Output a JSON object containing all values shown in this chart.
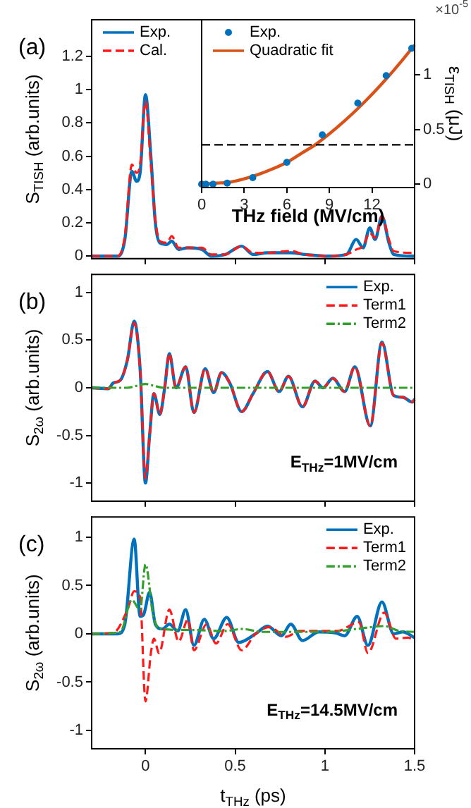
{
  "chart_data": [
    {
      "type": "line",
      "annotations": [
        "(a)"
      ],
      "ylabel": "S$_{TISH}$ (arb.units)",
      "xlim": [
        -0.3,
        1.5
      ],
      "xticks": [
        0,
        0.5,
        1,
        1.5
      ],
      "ylim": [
        -0.015,
        1.42
      ],
      "yticks": [
        0,
        0.2,
        0.4,
        0.6,
        0.8,
        1,
        1.2
      ],
      "tick_labels": "y",
      "legend": "top left",
      "series": [
        {
          "name": "Exp.",
          "color": "#0072bd",
          "line_style": "solid",
          "x": [
            -0.3,
            -0.154,
            -0.115,
            -0.076,
            -0.05,
            -0.03,
            0,
            0.03,
            0.055,
            0.08,
            0.12,
            0.146,
            0.185,
            0.237,
            0.315,
            0.367,
            0.445,
            0.536,
            0.6,
            0.68,
            0.81,
            0.89,
            1.02,
            1.12,
            1.175,
            1.213,
            1.25,
            1.28,
            1.318,
            1.357,
            1.383,
            1.487,
            1.5
          ],
          "values": [
            0,
            0,
            0.1,
            0.51,
            0.45,
            0.5,
            0.97,
            0.6,
            0.2,
            0.08,
            0.07,
            0.09,
            0.04,
            0.05,
            0.04,
            0,
            0.01,
            0.06,
            0.01,
            0.02,
            0.02,
            0.01,
            0,
            0.01,
            0.1,
            0.05,
            0.17,
            0.1,
            0.24,
            0.08,
            0.01,
            0,
            0
          ]
        },
        {
          "name": "Cal.",
          "color": "#ff1a1a",
          "line_style": "dashed",
          "x": [
            -0.3,
            -0.154,
            -0.115,
            -0.076,
            -0.05,
            -0.03,
            0,
            0.03,
            0.055,
            0.08,
            0.12,
            0.146,
            0.185,
            0.237,
            0.315,
            0.367,
            0.445,
            0.536,
            0.6,
            0.68,
            0.81,
            0.89,
            1.02,
            1.12,
            1.175,
            1.213,
            1.25,
            1.28,
            1.318,
            1.357,
            1.383,
            1.487,
            1.5
          ],
          "values": [
            0,
            0,
            0.12,
            0.55,
            0.5,
            0.55,
            0.93,
            0.55,
            0.22,
            0.09,
            0.08,
            0.12,
            0.05,
            0.05,
            0.05,
            0.01,
            0.01,
            0.06,
            0.02,
            0.02,
            0.03,
            0.01,
            0,
            0.01,
            0.04,
            0.06,
            0.14,
            0.11,
            0.24,
            0.1,
            0.03,
            0.02,
            0.03
          ]
        }
      ]
    },
    {
      "type": "scatter",
      "xlabel": "THz field (MV/cm)",
      "y2label": "ε$_{TISH}$ (μJ)",
      "annotations": [
        "×10$^{-5}$"
      ],
      "xlim": [
        0,
        15
      ],
      "xticks": [
        0,
        3,
        6,
        9,
        12
      ],
      "y2lim": [
        -0.03,
        1.5
      ],
      "y2ticks": [
        0,
        0.5,
        1
      ],
      "legend": "top left",
      "ref_lines": [
        {
          "axis": "y2",
          "value": 0.36,
          "color": "#000000",
          "line_style": "dashed"
        }
      ],
      "series": [
        {
          "name": "Exp.",
          "type": "scatter",
          "color": "#0072bd",
          "marker": "circle",
          "axis": "y2",
          "x": [
            0,
            0.3,
            0.8,
            1.8,
            3.6,
            6,
            8.5,
            11,
            13,
            14.8
          ],
          "values": [
            0,
            0,
            0,
            0.01,
            0.06,
            0.2,
            0.45,
            0.74,
            0.99,
            1.24
          ]
        },
        {
          "name": "Quadratic fit",
          "type": "line",
          "color": "#d95319",
          "line_style": "solid",
          "axis": "y2",
          "x": [
            0,
            1,
            2,
            3,
            4,
            5,
            6,
            7,
            8,
            9,
            10,
            11,
            12,
            13,
            14,
            15
          ],
          "values": [
            0,
            0.01,
            0.02,
            0.05,
            0.09,
            0.14,
            0.2,
            0.28,
            0.36,
            0.46,
            0.57,
            0.69,
            0.82,
            0.96,
            1.11,
            1.27
          ]
        }
      ]
    },
    {
      "type": "line",
      "annotations": [
        "(b)",
        "E$_{THz}$=1MV/cm"
      ],
      "ylabel": "S$_{2ω}$ (arb.units)",
      "xlim": [
        -0.3,
        1.5
      ],
      "xticks": [
        0,
        0.5,
        1,
        1.5
      ],
      "ylim": [
        -1.19,
        1.19
      ],
      "yticks": [
        -1,
        -0.5,
        0,
        0.5,
        1
      ],
      "tick_labels": "y",
      "legend": "top right",
      "series": [
        {
          "name": "Exp.",
          "color": "#0072bd",
          "line_style": "solid",
          "x": [
            -0.3,
            -0.206,
            -0.18,
            -0.14,
            -0.1,
            -0.063,
            -0.03,
            0,
            0.023,
            0.047,
            0.08,
            0.107,
            0.133,
            0.17,
            0.224,
            0.27,
            0.333,
            0.38,
            0.424,
            0.47,
            0.536,
            0.6,
            0.68,
            0.745,
            0.797,
            0.875,
            0.945,
            0.99,
            1.044,
            1.11,
            1.167,
            1.253,
            1.318,
            1.383,
            1.435,
            1.487,
            1.5
          ],
          "values": [
            0,
            -0.01,
            0.05,
            0.08,
            0.3,
            0.7,
            0.2,
            -1,
            -0.5,
            -0.06,
            -0.28,
            0,
            0.36,
            0,
            0.22,
            -0.26,
            0.2,
            -0.05,
            0.16,
            0.05,
            -0.25,
            -0.06,
            0.17,
            -0.04,
            0.12,
            -0.2,
            0.07,
            0,
            0.1,
            -0.04,
            0.22,
            -0.4,
            0.48,
            -0.08,
            -0.1,
            -0.15,
            -0.12
          ]
        },
        {
          "name": "Term1",
          "color": "#ff1a1a",
          "line_style": "dashed",
          "x": [
            -0.3,
            -0.206,
            -0.18,
            -0.14,
            -0.1,
            -0.063,
            -0.03,
            0,
            0.023,
            0.047,
            0.08,
            0.107,
            0.133,
            0.17,
            0.224,
            0.27,
            0.333,
            0.38,
            0.424,
            0.47,
            0.536,
            0.6,
            0.68,
            0.745,
            0.797,
            0.875,
            0.945,
            0.99,
            1.044,
            1.11,
            1.167,
            1.253,
            1.318,
            1.383,
            1.435,
            1.487,
            1.5
          ],
          "values": [
            0,
            -0.01,
            0.05,
            0.08,
            0.3,
            0.68,
            0.2,
            -0.95,
            -0.5,
            -0.06,
            -0.28,
            0,
            0.36,
            0,
            0.22,
            -0.26,
            0.2,
            -0.05,
            0.16,
            0.05,
            -0.25,
            -0.06,
            0.17,
            -0.04,
            0.12,
            -0.2,
            0.07,
            0,
            0.1,
            -0.04,
            0.22,
            -0.4,
            0.47,
            -0.08,
            -0.1,
            -0.15,
            -0.12
          ]
        },
        {
          "name": "Term2",
          "color": "#33a02c",
          "line_style": "dotted",
          "x": [
            -0.3,
            -0.1,
            -0.05,
            0,
            0.05,
            0.1,
            1.5
          ],
          "values": [
            0,
            0,
            0.02,
            0.04,
            0.02,
            0,
            0
          ]
        }
      ]
    },
    {
      "type": "line",
      "annotations": [
        "(c)",
        "E$_{THz}$=14.5MV/cm"
      ],
      "xlabel": "t$_{THz}$ (ps)",
      "ylabel": "S$_{2ω}$ (arb.units)",
      "xlim": [
        -0.3,
        1.5
      ],
      "xticks": [
        0,
        0.5,
        1,
        1.5
      ],
      "ylim": [
        -1.19,
        1.21
      ],
      "yticks": [
        -1,
        -0.5,
        0,
        0.5,
        1
      ],
      "legend": "top right",
      "series": [
        {
          "name": "Exp.",
          "color": "#0072bd",
          "line_style": "solid",
          "x": [
            -0.3,
            -0.154,
            -0.115,
            -0.063,
            -0.03,
            -0.01,
            0.023,
            0.055,
            0.094,
            0.133,
            0.18,
            0.224,
            0.27,
            0.328,
            0.38,
            0.453,
            0.52,
            0.614,
            0.68,
            0.758,
            0.81,
            0.875,
            0.966,
            1.057,
            1.11,
            1.18,
            1.24,
            1.318,
            1.383,
            1.435,
            1.5
          ],
          "values": [
            0,
            0,
            0.1,
            0.98,
            0.18,
            0.2,
            0.43,
            0.1,
            0.05,
            0.1,
            0.03,
            0.25,
            -0.12,
            0.15,
            -0.05,
            0.17,
            -0.09,
            0,
            0.08,
            -0.02,
            0.1,
            -0.07,
            0.02,
            0.01,
            -0.02,
            0.18,
            -0.12,
            0.33,
            0,
            0.02,
            -0.04
          ]
        },
        {
          "name": "Term1",
          "color": "#ff1a1a",
          "line_style": "dashed",
          "x": [
            -0.3,
            -0.18,
            -0.1,
            -0.063,
            -0.03,
            0,
            0.03,
            0.047,
            0.076,
            0.133,
            0.185,
            0.237,
            0.27,
            0.341,
            0.393,
            0.458,
            0.536,
            0.614,
            0.693,
            0.784,
            0.862,
            0.966,
            1.07,
            1.19,
            1.24,
            1.331,
            1.396,
            1.461,
            1.5
          ],
          "values": [
            0,
            0.01,
            0.25,
            0.44,
            0.38,
            -0.7,
            -0.2,
            -0.05,
            -0.2,
            0.25,
            -0.08,
            0.15,
            -0.17,
            0.1,
            -0.1,
            0.1,
            -0.17,
            0,
            0.07,
            -0.03,
            0.03,
            0.03,
            0.03,
            0.12,
            -0.2,
            0.22,
            -0.05,
            -0.04,
            -0.06
          ]
        },
        {
          "name": "Term2",
          "color": "#33a02c",
          "line_style": "dotted",
          "x": [
            -0.3,
            -0.14,
            -0.076,
            -0.03,
            0,
            0.042,
            0.08,
            0.237,
            0.445,
            0.536,
            0.654,
            1.02,
            1.175,
            1.331,
            1.414,
            1.5
          ],
          "values": [
            0,
            0.02,
            0.35,
            0.25,
            0.72,
            0.2,
            0.05,
            0.04,
            0.03,
            0.05,
            0.02,
            0.02,
            0.05,
            0.08,
            0.03,
            0.02
          ]
        }
      ]
    }
  ]
}
